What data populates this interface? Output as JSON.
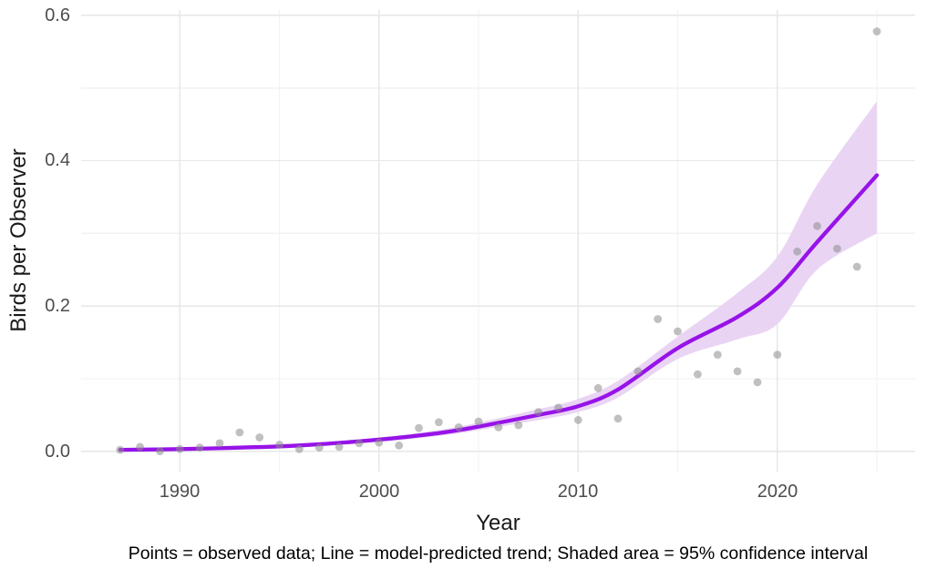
{
  "chart_data": {
    "type": "scatter",
    "title": "",
    "xlabel": "Year",
    "ylabel": "Birds per Observer",
    "caption": "Points = observed data; Line = model-predicted trend; Shaded area = 95% confidence interval",
    "xlim": [
      1985.1,
      2026.9
    ],
    "ylim": [
      -0.029,
      0.607
    ],
    "grid": true,
    "legend_position": "none",
    "x_axis": {
      "major_ticks": [
        1990,
        2000,
        2010,
        2020
      ],
      "major_tick_labels": [
        "1990",
        "2000",
        "2010",
        "2020"
      ],
      "minor_gridlines": [
        1995,
        2005,
        2015,
        2025
      ]
    },
    "y_axis": {
      "major_ticks": [
        0.0,
        0.2,
        0.4,
        0.6
      ],
      "major_tick_labels": [
        "0.0",
        "0.2",
        "0.4",
        "0.6"
      ],
      "minor_gridlines": [
        0.1,
        0.3,
        0.5
      ]
    },
    "series": [
      {
        "name": "observed",
        "type": "points",
        "x": [
          1987,
          1988,
          1989,
          1990,
          1991,
          1992,
          1993,
          1994,
          1995,
          1996,
          1997,
          1998,
          1999,
          2000,
          2001,
          2002,
          2003,
          2004,
          2005,
          2006,
          2007,
          2008,
          2009,
          2010,
          2011,
          2012,
          2013,
          2014,
          2015,
          2016,
          2017,
          2018,
          2019,
          2020,
          2021,
          2022,
          2023,
          2024,
          2025
        ],
        "y": [
          0.002,
          0.006,
          0.0,
          0.003,
          0.005,
          0.011,
          0.026,
          0.019,
          0.009,
          0.003,
          0.005,
          0.006,
          0.011,
          0.012,
          0.008,
          0.032,
          0.04,
          0.033,
          0.041,
          0.033,
          0.036,
          0.054,
          0.06,
          0.043,
          0.087,
          0.045,
          0.11,
          0.182,
          0.165,
          0.106,
          0.133,
          0.11,
          0.095,
          0.133,
          0.275,
          0.31,
          0.279,
          0.254,
          0.578
        ]
      },
      {
        "name": "model-predicted trend",
        "type": "line",
        "x": [
          1987,
          1990,
          1993,
          1996,
          2000,
          2003,
          2005,
          2008,
          2010,
          2012,
          2015,
          2018,
          2020,
          2022,
          2025
        ],
        "y": [
          0.002,
          0.003,
          0.005,
          0.008,
          0.016,
          0.025,
          0.034,
          0.05,
          0.062,
          0.085,
          0.142,
          0.185,
          0.225,
          0.288,
          0.38
        ]
      },
      {
        "name": "95% confidence interval",
        "type": "ribbon",
        "x": [
          1987,
          1990,
          1993,
          1996,
          2000,
          2003,
          2005,
          2008,
          2010,
          2012,
          2015,
          2018,
          2020,
          2022,
          2025
        ],
        "lower": [
          0.0013,
          0.0021,
          0.0037,
          0.0063,
          0.013,
          0.021,
          0.029,
          0.043,
          0.054,
          0.074,
          0.127,
          0.154,
          0.175,
          0.25,
          0.3
        ],
        "upper": [
          0.0034,
          0.0044,
          0.0068,
          0.0102,
          0.019,
          0.0295,
          0.0395,
          0.058,
          0.072,
          0.097,
          0.158,
          0.218,
          0.268,
          0.367,
          0.482
        ]
      }
    ],
    "colors": {
      "trend_line": "#9713E8",
      "ribbon": "#E9D5F3",
      "points": "#8C8C8C",
      "grid_major": "#E7E7E7",
      "grid_minor": "#F2F2F2",
      "tick_text": "#4D4D4D",
      "title_text": "#1A1A1A",
      "caption_text": "#000000",
      "background": "#FFFFFF"
    }
  }
}
